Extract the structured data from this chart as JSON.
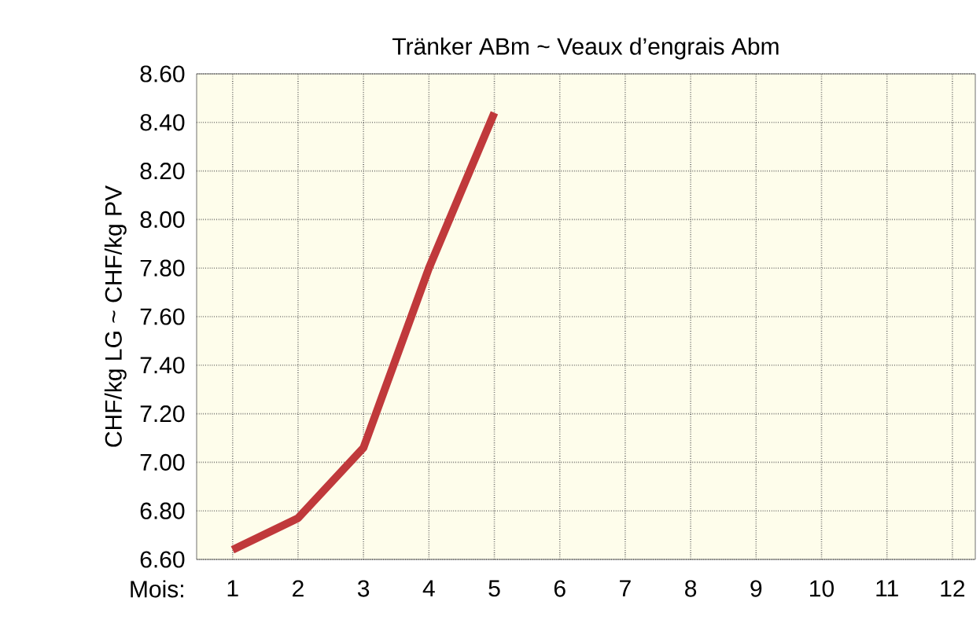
{
  "chart_data": {
    "type": "line",
    "title": "Tränker ABm ~ Veaux d’engrais Abm",
    "xlabel": "Mois:",
    "ylabel": "CHF/kg LG ~ CHF/kg PV",
    "x": [
      1,
      2,
      3,
      4,
      5
    ],
    "series": [
      {
        "color": "#c0393b",
        "values": [
          6.64,
          6.77,
          7.06,
          7.8,
          8.44
        ]
      }
    ],
    "xlim": [
      0.45,
      12.35
    ],
    "xticks": [
      1,
      2,
      3,
      4,
      5,
      6,
      7,
      8,
      9,
      10,
      11,
      12
    ],
    "ylim": [
      6.6,
      8.6
    ],
    "yticks": [
      {
        "value": 6.6,
        "label": "6.60"
      },
      {
        "value": 6.8,
        "label": "6.80"
      },
      {
        "value": 7.0,
        "label": "7.00"
      },
      {
        "value": 7.2,
        "label": "7.20"
      },
      {
        "value": 7.4,
        "label": "7.40"
      },
      {
        "value": 7.6,
        "label": "7.60"
      },
      {
        "value": 7.8,
        "label": "7.80"
      },
      {
        "value": 8.0,
        "label": "8.00"
      },
      {
        "value": 8.2,
        "label": "8.20"
      },
      {
        "value": 8.4,
        "label": "8.40"
      },
      {
        "value": 8.6,
        "label": "8.60"
      }
    ],
    "grid": true,
    "line_style": "solid",
    "marker": "none"
  }
}
